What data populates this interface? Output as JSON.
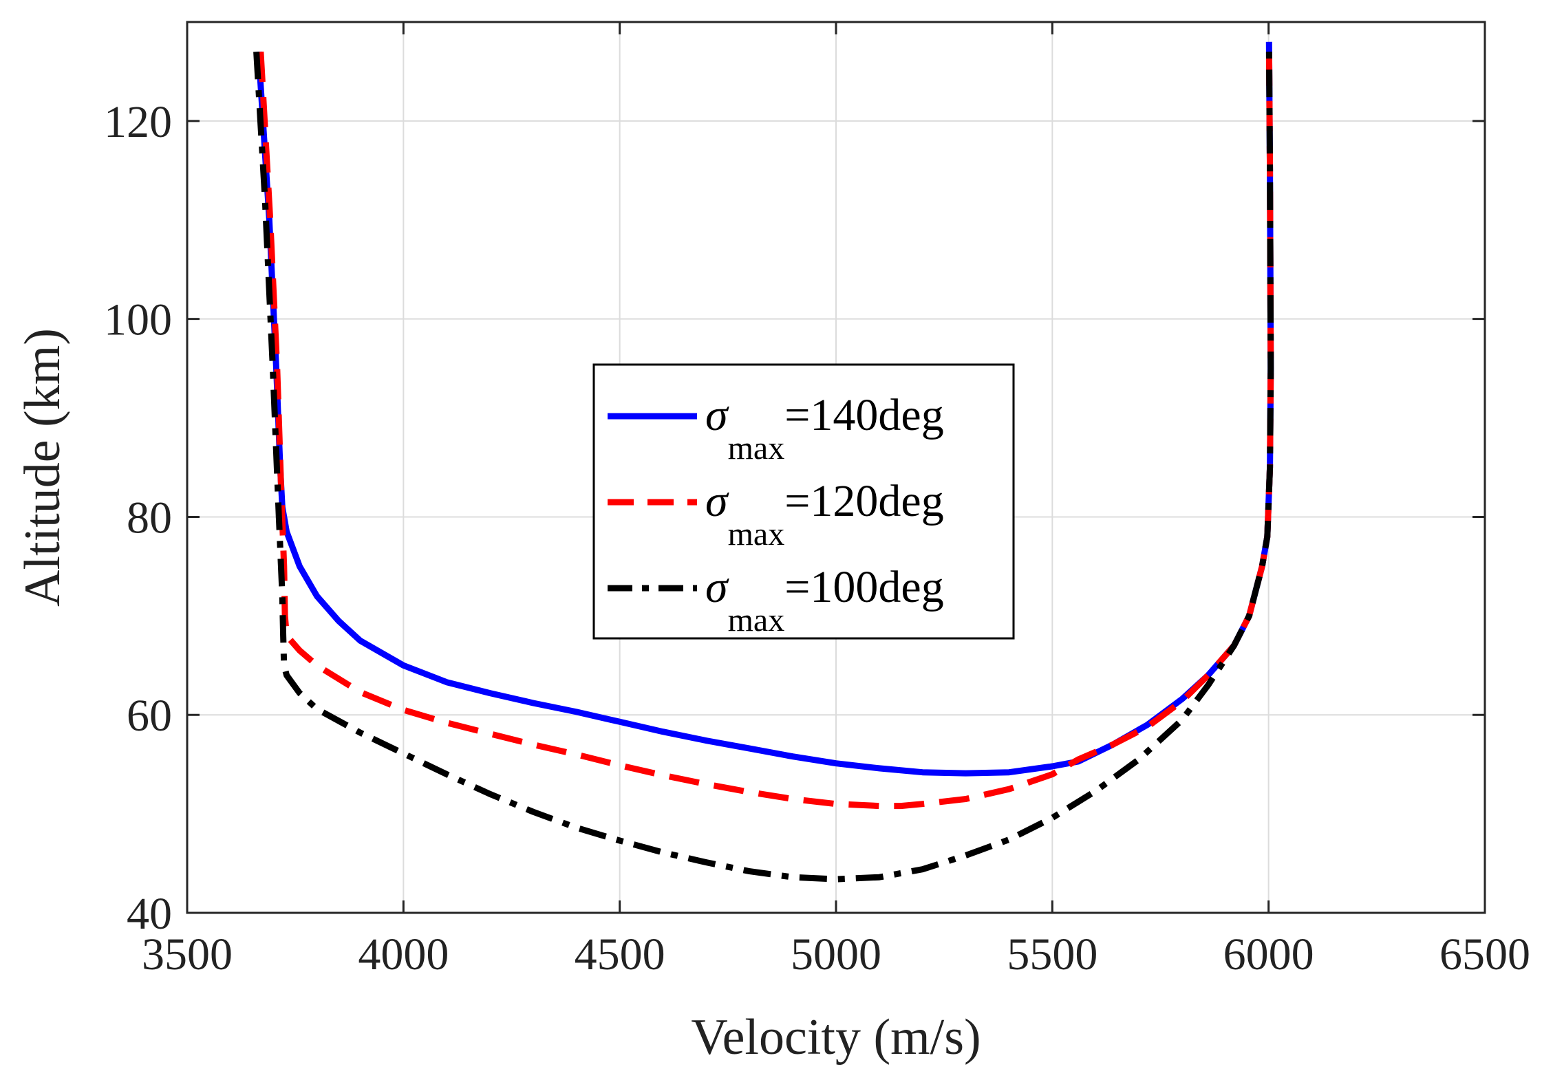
{
  "chart_data": {
    "type": "line",
    "xlabel": "Velocity (m/s)",
    "ylabel": "Altitude (km)",
    "xlim": [
      3500,
      6500
    ],
    "ylim": [
      40,
      130
    ],
    "xticks": [
      3500,
      4000,
      4500,
      5000,
      5500,
      6000,
      6500
    ],
    "yticks": [
      40,
      60,
      80,
      100,
      120
    ],
    "grid": true,
    "legend_position": "center",
    "series": [
      {
        "name": "σmax=140deg",
        "legend_symbol": "σ",
        "legend_sub": "max",
        "legend_suffix": "=140deg",
        "color": "#0000FF",
        "style": "solid",
        "x": [
          3665,
          3690,
          3706,
          3715,
          3720,
          3730,
          3760,
          3800,
          3850,
          3900,
          4000,
          4100,
          4200,
          4300,
          4400,
          4500,
          4600,
          4700,
          4800,
          4900,
          5000,
          5100,
          5200,
          5300,
          5400,
          5500,
          5560,
          5640,
          5720,
          5800,
          5860,
          5920,
          5955,
          5985,
          5997,
          6003,
          6005,
          6004,
          6003,
          6002,
          6001
        ],
        "y": [
          127,
          110,
          95,
          85,
          81,
          78.5,
          75,
          72,
          69.5,
          67.5,
          65,
          63.3,
          62.2,
          61.2,
          60.3,
          59.3,
          58.3,
          57.4,
          56.6,
          55.8,
          55.1,
          54.6,
          54.2,
          54.1,
          54.2,
          54.8,
          55.3,
          57,
          59,
          61.6,
          64,
          67,
          70,
          75,
          78,
          85,
          95,
          105,
          115,
          122,
          128
        ]
      },
      {
        "name": "σmax=120deg",
        "legend_symbol": "σ",
        "legend_sub": "max",
        "legend_suffix": "=120deg",
        "color": "#FF0000",
        "style": "dashed",
        "x": [
          3670,
          3692,
          3708,
          3718,
          3724,
          3726,
          3730,
          3760,
          3800,
          3900,
          4000,
          4100,
          4200,
          4300,
          4400,
          4500,
          4600,
          4700,
          4800,
          4900,
          5000,
          5100,
          5150,
          5200,
          5300,
          5400,
          5500,
          5560,
          5640,
          5720,
          5800,
          5860,
          5920,
          5955,
          5985,
          5997,
          6003,
          6005,
          6004,
          6003,
          6002,
          6001
        ],
        "y": [
          127,
          110,
          95,
          82,
          75,
          70,
          68,
          66.5,
          65,
          62.3,
          60.5,
          59.2,
          58.1,
          57,
          56,
          54.9,
          53.9,
          53,
          52.2,
          51.5,
          51,
          50.8,
          50.8,
          51,
          51.5,
          52.5,
          54,
          55.5,
          57,
          58.8,
          61.4,
          64,
          67,
          70,
          75,
          78,
          85,
          95,
          105,
          115,
          122,
          128
        ]
      },
      {
        "name": "σmax=100deg",
        "legend_symbol": "σ",
        "legend_sub": "max",
        "legend_suffix": "=100deg",
        "color": "#000000",
        "style": "dashdot",
        "x": [
          3660,
          3680,
          3698,
          3712,
          3720,
          3722,
          3724,
          3730,
          3760,
          3800,
          3900,
          4000,
          4100,
          4200,
          4300,
          4400,
          4500,
          4600,
          4700,
          4800,
          4900,
          5000,
          5100,
          5200,
          5300,
          5400,
          5500,
          5600,
          5700,
          5800,
          5860,
          5920,
          5955,
          5985,
          5997,
          6003,
          6005,
          6004,
          6003,
          6002,
          6001
        ],
        "y": [
          127,
          112,
          95,
          80,
          72,
          68,
          65,
          64,
          62.2,
          60.6,
          58.2,
          56.1,
          54,
          52,
          50.2,
          48.6,
          47.3,
          46.1,
          45.1,
          44.2,
          43.6,
          43.4,
          43.6,
          44.4,
          45.8,
          47.4,
          49.6,
          52.3,
          55.5,
          59.5,
          63,
          67,
          70,
          75,
          78,
          85,
          95,
          105,
          115,
          122,
          128
        ]
      }
    ]
  }
}
